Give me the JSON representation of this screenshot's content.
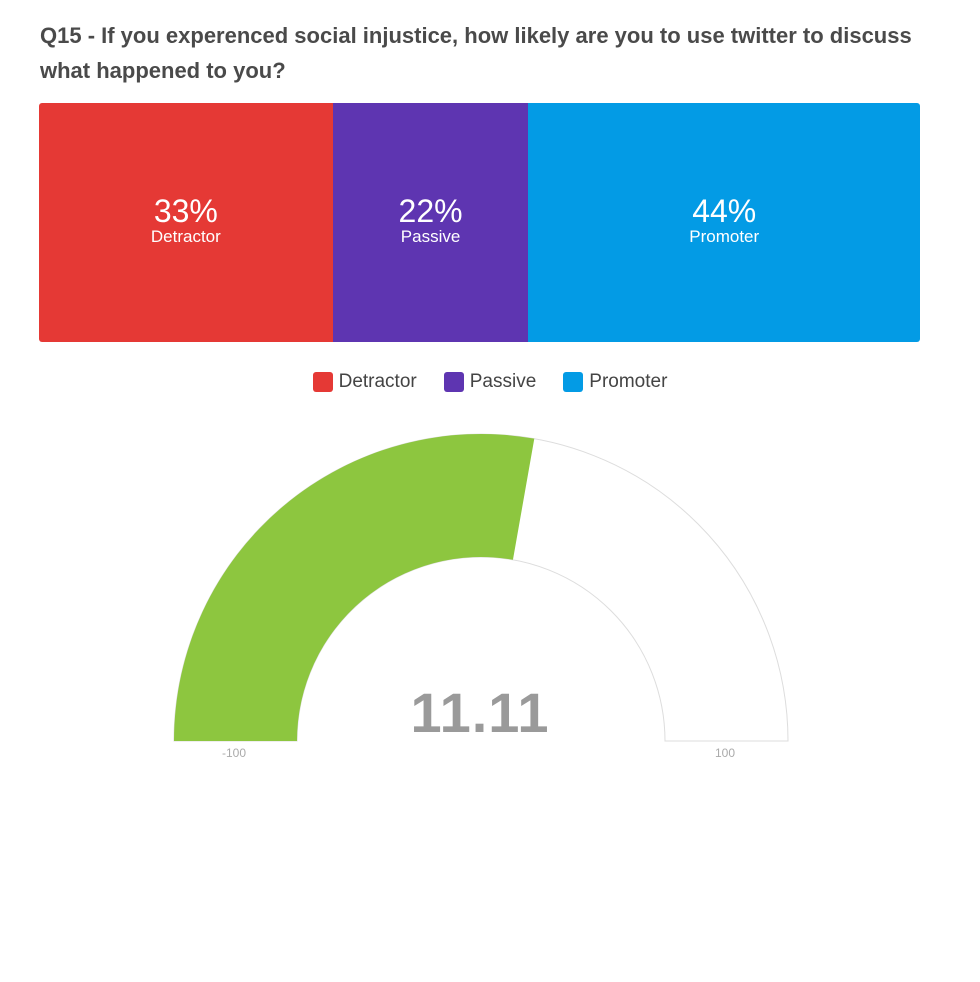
{
  "question": "Q15 - If you experenced social injustice, how likely are you to use twitter to discuss what happened to you?",
  "chart_data": [
    {
      "type": "bar",
      "stacked": true,
      "orientation": "horizontal",
      "categories": [
        "Detractor",
        "Passive",
        "Promoter"
      ],
      "segments": [
        {
          "label": "Detractor",
          "value": 33,
          "display": "33%",
          "color": "#e53935"
        },
        {
          "label": "Passive",
          "value": 22,
          "display": "22%",
          "color": "#5e35b1"
        },
        {
          "label": "Promoter",
          "value": 44,
          "display": "44%",
          "color": "#039be5"
        }
      ],
      "legend": [
        {
          "label": "Detractor",
          "color": "#e53935"
        },
        {
          "label": "Passive",
          "color": "#5e35b1"
        },
        {
          "label": "Promoter",
          "color": "#039be5"
        }
      ],
      "legend_position": "bottom"
    },
    {
      "type": "gauge",
      "value": 11.11,
      "value_display": "11.11",
      "min": -100,
      "max": 100,
      "min_label": "-100",
      "max_label": "100",
      "fill_color": "#8dc63f",
      "track_color": "#ffffff"
    }
  ]
}
